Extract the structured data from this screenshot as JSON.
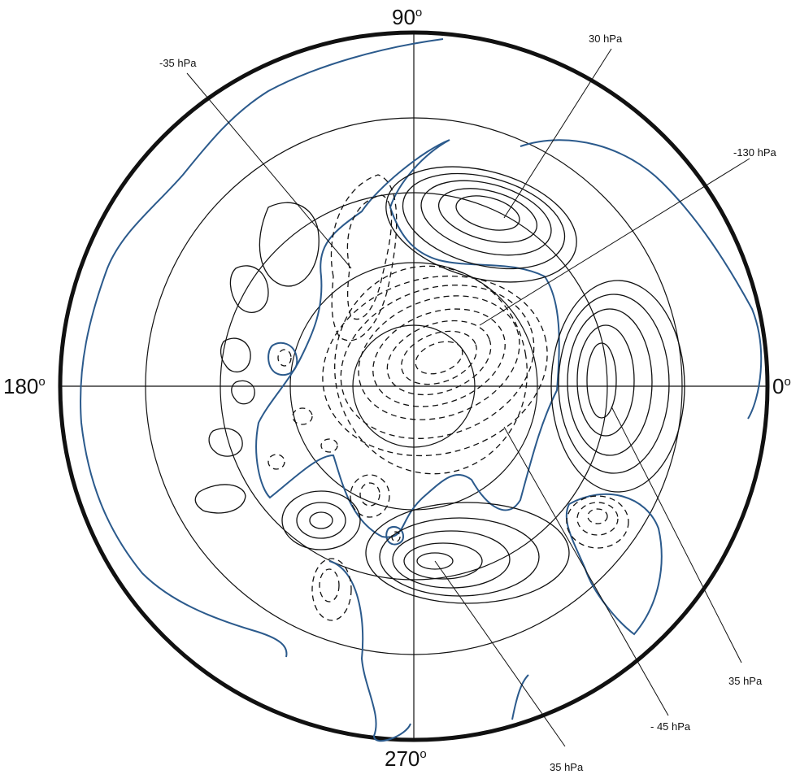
{
  "map": {
    "type": "polar stereographic contour map",
    "longitude_labels": {
      "top": {
        "value": "90",
        "degree": "o"
      },
      "left": {
        "value": "180",
        "degree": "o"
      },
      "right": {
        "value": "0",
        "degree": "o"
      },
      "bottom": {
        "value": "270",
        "degree": "o"
      }
    },
    "annotations": [
      {
        "id": "a1",
        "text": "-35 hPa"
      },
      {
        "id": "a2",
        "text": "30 hPa"
      },
      {
        "id": "a3",
        "text": "-130 hPa"
      },
      {
        "id": "a4",
        "text": "35 hPa"
      },
      {
        "id": "a5",
        "text": "- 45 hPa"
      },
      {
        "id": "a6",
        "text": "35 hPa"
      }
    ],
    "colors": {
      "ink": "#111111",
      "zero_contour": "#2b5a8c",
      "background": "#ffffff"
    }
  }
}
